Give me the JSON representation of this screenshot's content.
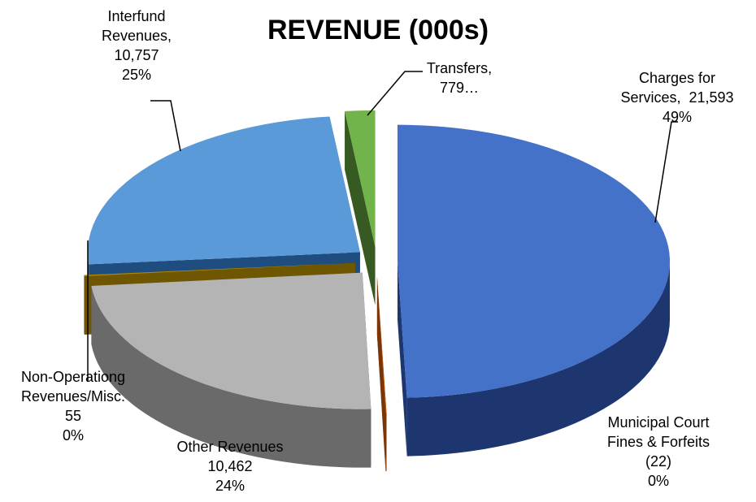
{
  "chart_data": {
    "type": "pie3d",
    "title": "REVENUE (000s)",
    "categories": [
      "Charges for Services,",
      "Municipal Court Fines & Forfeits",
      "Other Revenues",
      "Non-Operationg Revenues/Misc.",
      "Interfund Revenues,",
      "Transfers,"
    ],
    "values": [
      21593,
      -22,
      10462,
      55,
      10757,
      779
    ],
    "value_labels": [
      "21,593",
      "(22)",
      "10,462",
      "55",
      "10,757",
      "779…"
    ],
    "percent_labels": [
      "49%",
      "0%",
      "24%",
      "0%",
      "25%",
      null
    ],
    "colors": [
      "#4572c9",
      "#c55a11",
      "#b4b4b4",
      "#b08a00",
      "#5a9ad8",
      "#72b44c"
    ],
    "wall_colors": [
      "#1d3670",
      "#7a3608",
      "#6a6a6a",
      "#6f5600",
      "#1f4d7f",
      "#365a22"
    ]
  }
}
